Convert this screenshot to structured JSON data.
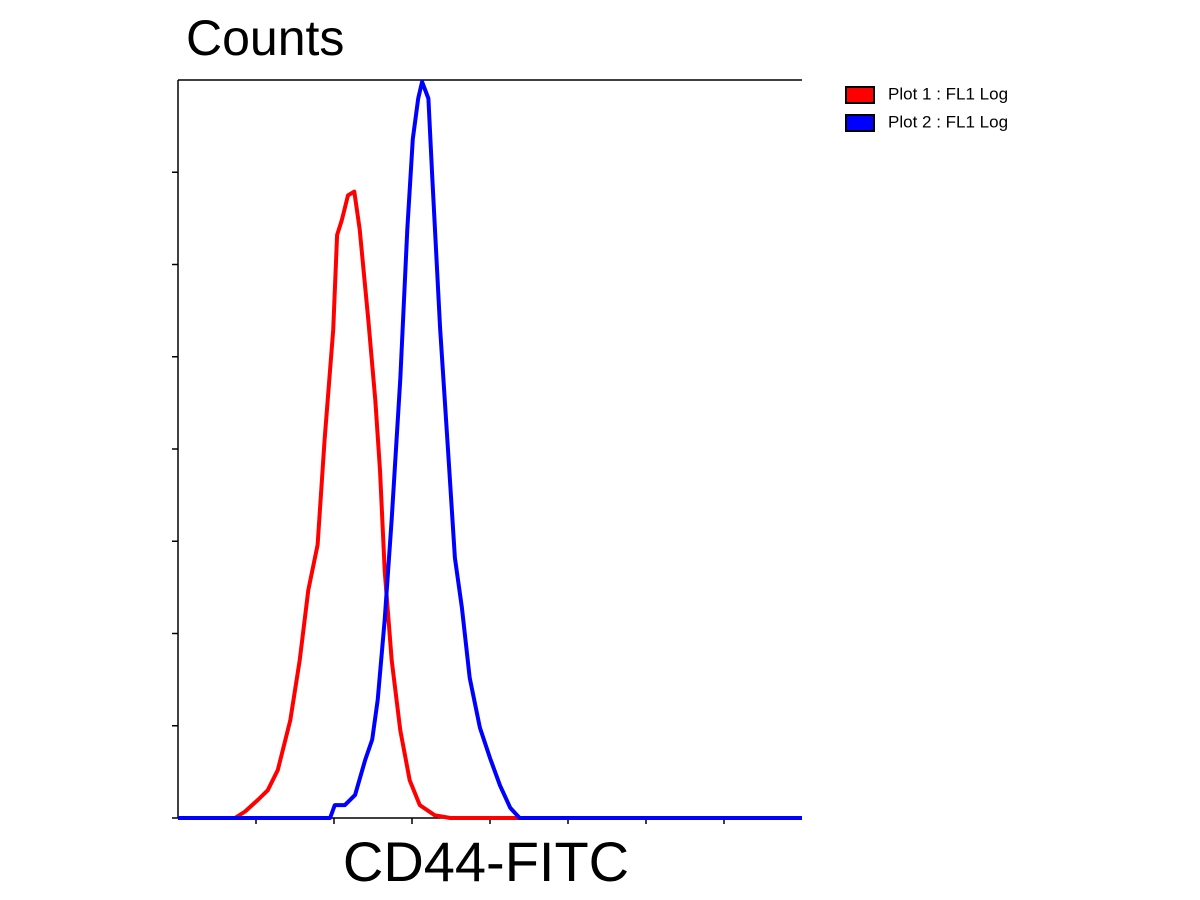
{
  "chart_data": {
    "type": "line",
    "title": "Counts",
    "x_label": "CD44-FITC",
    "xlim": [
      0,
      8
    ],
    "xticks": [
      1,
      2,
      3,
      4,
      5,
      6,
      7
    ],
    "ylim": [
      0,
      8
    ],
    "yticks": [
      1,
      2,
      3,
      4,
      5,
      6,
      7
    ],
    "grid": false,
    "legend": "right",
    "series": [
      {
        "name": "Plot 1 : FL1 Log",
        "color": "#ff0000",
        "x": [
          0,
          0.73,
          0.86,
          1.03,
          1.15,
          1.28,
          1.44,
          1.56,
          1.67,
          1.79,
          1.88,
          1.99,
          2.04,
          2.1,
          2.18,
          2.26,
          2.33,
          2.44,
          2.53,
          2.59,
          2.65,
          2.74,
          2.85,
          2.97,
          3.1,
          3.29,
          3.49,
          8
        ],
        "values": [
          0,
          0,
          0.07,
          0.2,
          0.3,
          0.52,
          1.06,
          1.71,
          2.47,
          2.96,
          4.1,
          5.29,
          6.32,
          6.48,
          6.75,
          6.79,
          6.38,
          5.4,
          4.53,
          3.77,
          2.68,
          1.71,
          0.95,
          0.41,
          0.14,
          0.03,
          0,
          0
        ]
      },
      {
        "name": "Plot 2 : FL1 Log",
        "color": "#0000ff",
        "x": [
          0,
          1.95,
          2.01,
          2.14,
          2.27,
          2.4,
          2.49,
          2.56,
          2.65,
          2.74,
          2.85,
          2.94,
          3.01,
          3.08,
          3.13,
          3.21,
          3.26,
          3.36,
          3.46,
          3.55,
          3.64,
          3.74,
          3.87,
          4.0,
          4.13,
          4.26,
          4.38,
          8
        ],
        "values": [
          0,
          0,
          0.14,
          0.14,
          0.25,
          0.63,
          0.85,
          1.28,
          2.15,
          3.24,
          4.76,
          6.38,
          7.36,
          7.8,
          7.98,
          7.8,
          6.94,
          5.31,
          4.01,
          2.82,
          2.28,
          1.52,
          0.98,
          0.65,
          0.35,
          0.11,
          0,
          0
        ]
      }
    ]
  }
}
